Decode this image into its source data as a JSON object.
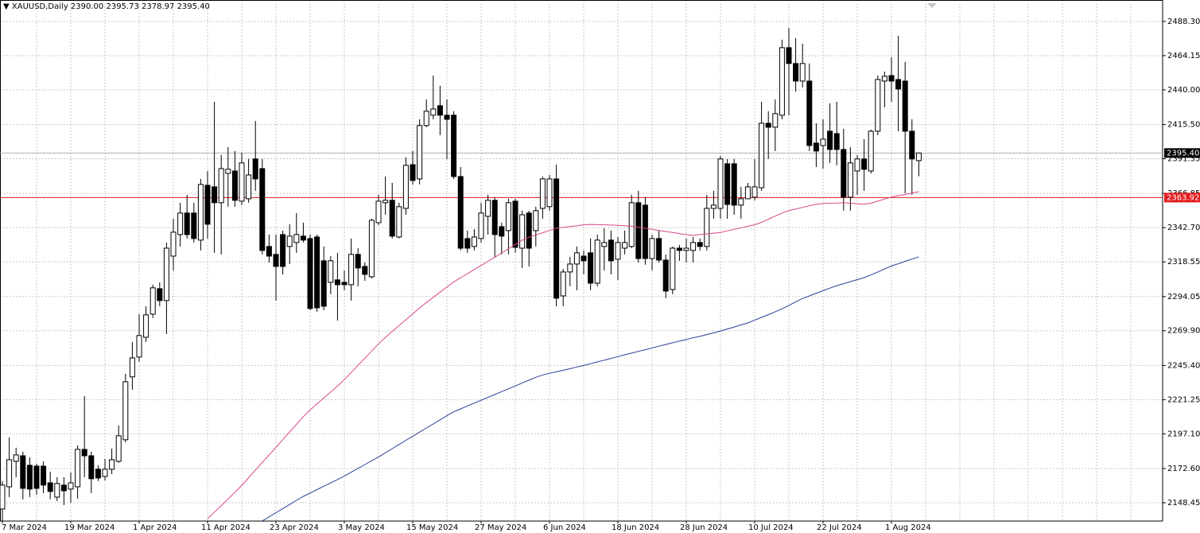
{
  "chart_data": {
    "type": "candlestick",
    "title": "XAUUSD,Daily",
    "header_labels": [
      "2390.00",
      "2395.73",
      "2378.97",
      "2395.40"
    ],
    "categories": [
      "7 Mar 2024",
      null,
      null,
      null,
      null,
      null,
      null,
      null,
      null,
      null,
      "19 Mar 2024",
      null,
      null,
      null,
      null,
      null,
      null,
      null,
      null,
      null,
      "1 Apr 2024",
      null,
      null,
      null,
      null,
      null,
      null,
      null,
      null,
      null,
      "11 Apr 2024",
      null,
      null,
      null,
      null,
      null,
      null,
      null,
      null,
      null,
      "23 Apr 2024",
      null,
      null,
      null,
      null,
      null,
      null,
      null,
      null,
      null,
      "3 May 2024",
      null,
      null,
      null,
      null,
      null,
      null,
      null,
      null,
      null,
      "15 May 2024",
      null,
      null,
      null,
      null,
      null,
      null,
      null,
      null,
      null,
      "27 May 2024",
      null,
      null,
      null,
      null,
      null,
      null,
      null,
      null,
      null,
      "6 Jun 2024",
      null,
      null,
      null,
      null,
      null,
      null,
      null,
      null,
      null,
      "18 Jun 2024",
      null,
      null,
      null,
      null,
      null,
      null,
      null,
      null,
      null,
      "28 Jun 2024",
      null,
      null,
      null,
      null,
      null,
      null,
      null,
      null,
      null,
      "10 Jul 2024",
      null,
      null,
      null,
      null,
      null,
      null,
      null,
      null,
      null,
      "22 Jul 2024",
      null,
      null,
      null,
      null,
      null,
      null,
      null,
      null,
      null,
      "1 Aug 2024",
      null,
      null,
      null,
      null
    ],
    "open": [
      2144.0,
      2159.7,
      2177.7,
      2181.6,
      2174.9,
      2174.3,
      2174.3,
      2162.5,
      2152.4,
      2160.9,
      2158.1,
      2159.7,
      2186.1,
      2181.6,
      2172.1,
      2167.0,
      2172.1,
      2177.7,
      2192.9,
      2237.3,
      2251.3,
      2265.3,
      2281.6,
      2299.6,
      2291.2,
      2322.6,
      2337.8,
      2353.0,
      2353.0,
      2333.9,
      2372.6,
      2371.5,
      2360.3,
      2381.0,
      2382.7,
      2361.4,
      2363.1,
      2391.2,
      2384.4,
      2329.4,
      2323.8,
      2337.8,
      2329.4,
      2332.2,
      2336.7,
      2335.0,
      2336.1,
      2319.3,
      2304.1,
      2305.8,
      2304.1,
      2302.4,
      2323.8,
      2315.3,
      2308.0,
      2346.2,
      2360.3,
      2362.0,
      2336.1,
      2356.3,
      2387.2,
      2377.1,
      2414.8,
      2422.1,
      2428.8,
      2422.1,
      2422.1,
      2378.8,
      2335.0,
      2329.4,
      2335.0,
      2350.7,
      2362.0,
      2343.4,
      2340.6,
      2361.4,
      2328.2,
      2353.0,
      2340.6,
      2356.3,
      2357.5,
      2377.1,
      2294.5,
      2311.4,
      2317.0,
      2322.6,
      2324.9,
      2303.5,
      2329.4,
      2333.9,
      2320.4,
      2328.2,
      2329.4,
      2360.3,
      2358.6,
      2320.9,
      2335.0,
      2319.8,
      2299.0,
      2328.2,
      2326.6,
      2326.6,
      2332.2,
      2329.4,
      2356.3,
      2356.3,
      2387.8,
      2387.8,
      2358.6,
      2363.1,
      2364.2,
      2370.9,
      2416.4,
      2413.6,
      2422.1,
      2469.8,
      2458.6,
      2446.2,
      2446.2,
      2402.4,
      2400.7,
      2410.8,
      2409.1,
      2397.9,
      2364.2,
      2382.7,
      2391.2,
      2382.7,
      2410.8,
      2446.2,
      2450.1,
      2447.3,
      2446.2,
      2410.8,
      2390.0
    ],
    "high": [
      2163.7,
      2194.6,
      2187.3,
      2184.5,
      2180.5,
      2176.0,
      2177.7,
      2170.4,
      2166.5,
      2166.5,
      2169.8,
      2188.9,
      2223.8,
      2184.5,
      2174.9,
      2179.4,
      2186.7,
      2203.0,
      2239.5,
      2262.0,
      2281.6,
      2287.2,
      2302.4,
      2304.1,
      2332.2,
      2349.0,
      2360.3,
      2365.9,
      2360.3,
      2377.1,
      2382.7,
      2431.6,
      2394.0,
      2399.6,
      2396.8,
      2395.7,
      2391.2,
      2418.1,
      2391.2,
      2337.8,
      2337.8,
      2340.6,
      2345.1,
      2353.0,
      2346.2,
      2337.8,
      2337.8,
      2329.4,
      2322.6,
      2324.9,
      2312.5,
      2335.0,
      2328.2,
      2318.1,
      2349.0,
      2365.9,
      2378.8,
      2374.3,
      2360.3,
      2392.3,
      2396.8,
      2419.2,
      2433.3,
      2450.1,
      2442.8,
      2433.3,
      2424.9,
      2385.5,
      2340.6,
      2341.7,
      2360.3,
      2365.9,
      2364.2,
      2346.2,
      2363.1,
      2363.1,
      2354.7,
      2354.7,
      2357.5,
      2378.8,
      2379.9,
      2387.2,
      2313.6,
      2322.1,
      2329.4,
      2326.6,
      2335.0,
      2337.8,
      2342.3,
      2340.6,
      2336.1,
      2340.6,
      2365.9,
      2368.7,
      2364.2,
      2337.8,
      2340.6,
      2323.8,
      2329.4,
      2330.5,
      2335.0,
      2336.1,
      2335.0,
      2365.9,
      2368.7,
      2393.4,
      2391.2,
      2391.2,
      2371.5,
      2374.3,
      2391.2,
      2431.6,
      2424.9,
      2433.3,
      2475.4,
      2483.8,
      2476.5,
      2472.6,
      2458.6,
      2416.4,
      2419.2,
      2430.5,
      2431.6,
      2412.5,
      2399.6,
      2394.0,
      2405.2,
      2411.9,
      2450.1,
      2452.9,
      2463.1,
      2478.2,
      2459.7,
      2419.2,
      2395.73
    ],
    "low": [
      2135.6,
      2152.4,
      2166.5,
      2150.8,
      2152.4,
      2154.1,
      2155.2,
      2150.8,
      2149.6,
      2146.8,
      2148.5,
      2151.3,
      2166.5,
      2155.2,
      2163.7,
      2164.2,
      2168.7,
      2176.6,
      2191.2,
      2228.3,
      2247.9,
      2262.0,
      2278.8,
      2287.2,
      2267.6,
      2312.5,
      2329.4,
      2335.0,
      2332.2,
      2326.6,
      2335.0,
      2324.9,
      2323.8,
      2357.5,
      2357.5,
      2358.6,
      2360.3,
      2368.7,
      2323.8,
      2318.1,
      2291.2,
      2309.7,
      2317.0,
      2324.9,
      2332.2,
      2284.4,
      2283.3,
      2284.4,
      2295.7,
      2277.1,
      2298.5,
      2291.2,
      2301.3,
      2305.2,
      2306.9,
      2344.5,
      2351.8,
      2335.0,
      2335.0,
      2351.8,
      2373.2,
      2373.2,
      2413.6,
      2419.2,
      2408.0,
      2391.2,
      2377.1,
      2326.6,
      2324.9,
      2326.6,
      2332.2,
      2337.8,
      2322.1,
      2323.8,
      2323.8,
      2324.9,
      2314.2,
      2315.3,
      2329.4,
      2349.0,
      2354.7,
      2287.2,
      2287.2,
      2301.3,
      2298.5,
      2309.7,
      2298.5,
      2301.3,
      2312.5,
      2309.7,
      2305.8,
      2323.8,
      2328.2,
      2318.1,
      2316.5,
      2312.5,
      2318.1,
      2292.9,
      2295.7,
      2319.3,
      2318.1,
      2318.1,
      2326.6,
      2326.6,
      2349.0,
      2349.0,
      2349.0,
      2351.8,
      2349.0,
      2363.1,
      2362.0,
      2368.7,
      2391.2,
      2396.8,
      2419.2,
      2422.1,
      2438.9,
      2441.7,
      2396.8,
      2385.5,
      2384.4,
      2388.4,
      2386.7,
      2354.7,
      2354.7,
      2365.9,
      2368.7,
      2381.0,
      2408.0,
      2427.7,
      2431.6,
      2410.8,
      2367.0,
      2365.9,
      2378.97
    ],
    "close": [
      2160.9,
      2178.8,
      2182.2,
      2158.6,
      2158.1,
      2158.6,
      2160.9,
      2156.4,
      2162.0,
      2156.9,
      2162.5,
      2186.1,
      2181.6,
      2165.4,
      2165.9,
      2172.1,
      2178.8,
      2195.7,
      2233.9,
      2250.7,
      2266.5,
      2281.1,
      2300.2,
      2291.2,
      2328.2,
      2339.5,
      2353.0,
      2337.8,
      2335.0,
      2373.2,
      2345.1,
      2360.3,
      2384.4,
      2383.9,
      2362.0,
      2388.4,
      2379.9,
      2377.1,
      2326.6,
      2322.6,
      2315.3,
      2315.3,
      2336.7,
      2337.8,
      2333.9,
      2285.6,
      2286.1,
      2287.2,
      2319.3,
      2302.4,
      2302.4,
      2323.8,
      2314.2,
      2309.7,
      2347.9,
      2361.4,
      2362.0,
      2336.7,
      2357.5,
      2386.7,
      2376.0,
      2414.8,
      2424.9,
      2426.5,
      2422.1,
      2419.2,
      2378.8,
      2328.2,
      2328.2,
      2336.1,
      2353.0,
      2362.0,
      2337.8,
      2336.7,
      2360.3,
      2328.8,
      2351.8,
      2328.2,
      2354.7,
      2377.1,
      2377.1,
      2292.9,
      2311.4,
      2317.0,
      2324.9,
      2319.3,
      2303.5,
      2333.9,
      2332.2,
      2319.3,
      2332.2,
      2332.2,
      2360.3,
      2320.9,
      2320.9,
      2335.0,
      2319.8,
      2297.9,
      2328.2,
      2326.6,
      2328.2,
      2332.2,
      2329.4,
      2356.3,
      2358.6,
      2391.2,
      2359.1,
      2358.6,
      2363.1,
      2371.5,
      2371.5,
      2416.4,
      2413.6,
      2423.2,
      2469.8,
      2458.6,
      2446.2,
      2458.6,
      2400.7,
      2396.8,
      2405.2,
      2397.9,
      2397.9,
      2364.2,
      2388.4,
      2391.2,
      2383.9,
      2410.8,
      2447.3,
      2449.6,
      2446.2,
      2440.6,
      2410.8,
      2391.2,
      2395.4
    ],
    "up_color": "#ffffff",
    "down_color": "#000000",
    "outline_color": "#000000",
    "series": [
      {
        "color": "#d9468c",
        "values": [
          null,
          null,
          null,
          null,
          null,
          null,
          null,
          null,
          null,
          null,
          null,
          null,
          null,
          null,
          null,
          null,
          null,
          null,
          null,
          null,
          null,
          null,
          null,
          null,
          null,
          null,
          null,
          null,
          null,
          null,
          2137.2,
          2141.8,
          2146.4,
          2151.1,
          2155.7,
          2160.7,
          2166.1,
          2171.5,
          2176.9,
          2182.2,
          2187.6,
          2193.0,
          2198.4,
          2203.8,
          2209.2,
          2214.0,
          2218.2,
          2222.4,
          2226.7,
          2230.9,
          2235.4,
          2240.4,
          2245.5,
          2250.5,
          2255.6,
          2260.6,
          2265.2,
          2269.4,
          2273.5,
          2277.7,
          2281.8,
          2286.0,
          2289.8,
          2293.5,
          2297.2,
          2300.8,
          2304.4,
          2307.3,
          2310.2,
          2313.1,
          2316.0,
          2318.9,
          2321.8,
          2324.8,
          2327.8,
          2330.8,
          2333.8,
          2335.9,
          2337.5,
          2339.1,
          2340.7,
          2342.3,
          2342.9,
          2343.5,
          2344.1,
          2344.7,
          2345.0,
          2344.8,
          2344.7,
          2344.5,
          2344.3,
          2344.1,
          2343.6,
          2342.9,
          2342.2,
          2341.5,
          2340.7,
          2340.0,
          2339.3,
          2338.5,
          2337.8,
          2337.3,
          2337.8,
          2338.3,
          2338.8,
          2339.3,
          2340.4,
          2341.5,
          2342.6,
          2343.7,
          2344.7,
          2346.5,
          2348.7,
          2350.8,
          2353.0,
          2354.8,
          2355.9,
          2357.0,
          2358.1,
          2359.2,
          2359.8,
          2360.0,
          2360.1,
          2360.3,
          2359.9,
          2359.6,
          2359.2,
          2360.0,
          2361.4,
          2362.9,
          2364.3,
          2365.3,
          2366.1,
          2367.1,
          2368.1
        ]
      },
      {
        "color": "#2a3f9a",
        "values": [
          null,
          null,
          null,
          null,
          null,
          null,
          null,
          null,
          null,
          null,
          null,
          null,
          null,
          null,
          null,
          null,
          null,
          null,
          null,
          null,
          null,
          null,
          null,
          null,
          null,
          null,
          null,
          null,
          null,
          null,
          null,
          null,
          null,
          null,
          null,
          null,
          null,
          null,
          2135.6,
          2138.5,
          2141.4,
          2144.3,
          2147.2,
          2150.1,
          2152.9,
          2155.3,
          2157.7,
          2160.1,
          2162.4,
          2164.8,
          2167.3,
          2170.0,
          2172.7,
          2175.4,
          2178.1,
          2180.8,
          2183.7,
          2186.6,
          2189.6,
          2192.5,
          2195.4,
          2198.3,
          2201.2,
          2204.1,
          2207.0,
          2209.9,
          2212.7,
          2214.7,
          2216.8,
          2218.8,
          2220.8,
          2222.9,
          2224.9,
          2226.9,
          2228.9,
          2230.9,
          2233.0,
          2235.0,
          2237.0,
          2238.7,
          2239.8,
          2240.9,
          2242.0,
          2243.1,
          2244.3,
          2245.4,
          2246.6,
          2247.9,
          2249.1,
          2250.4,
          2251.6,
          2252.9,
          2254.1,
          2255.3,
          2256.5,
          2257.8,
          2259.0,
          2260.2,
          2261.4,
          2262.6,
          2263.7,
          2264.9,
          2266.0,
          2267.2,
          2268.4,
          2269.7,
          2271.1,
          2272.5,
          2274.0,
          2275.4,
          2277.4,
          2279.3,
          2281.3,
          2283.3,
          2285.4,
          2287.8,
          2290.3,
          2292.7,
          2294.5,
          2296.4,
          2298.2,
          2300.0,
          2301.7,
          2303.1,
          2304.6,
          2306.0,
          2307.4,
          2309.3,
          2311.4,
          2313.5,
          2315.6,
          2317.2,
          2318.9,
          2320.5,
          2322.1
        ]
      }
    ],
    "last_price": {
      "value": 2395.4,
      "label": "2395.40",
      "color": "#b0b0b0"
    },
    "hline": {
      "value": 2363.92,
      "label": "2363.92",
      "color": "#e31a1c"
    },
    "ylim": [
      2135.5,
      2501.2
    ],
    "yticks": [
      {
        "value": 2488.3,
        "label": "2488.30"
      },
      2464.15,
      {
        "value": 2440,
        "label": "2440.00"
      },
      {
        "value": 2415.5,
        "label": "2415.50"
      },
      2391.35,
      2366.85,
      {
        "value": 2342.7,
        "label": "2342.70"
      },
      2318.55,
      2294.05,
      {
        "value": 2269.9,
        "label": "2269.90"
      },
      {
        "value": 2245.4,
        "label": "2245.40"
      },
      2221.25,
      {
        "value": 2197.1,
        "label": "2197.10"
      },
      {
        "value": 2172.6,
        "label": "2172.60"
      },
      2148.45
    ],
    "grid": true
  }
}
